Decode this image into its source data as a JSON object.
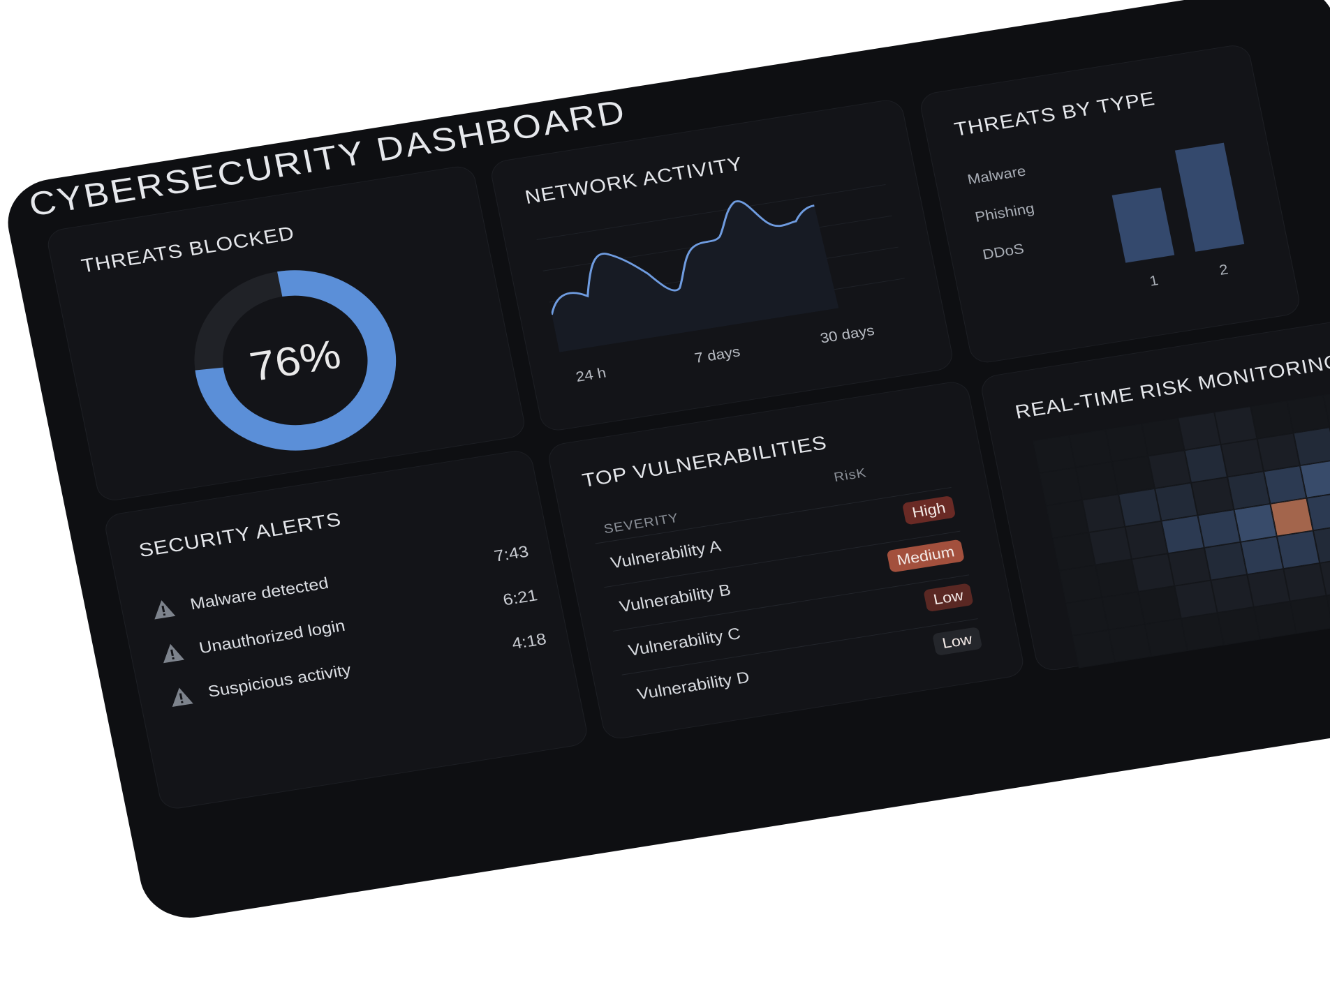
{
  "title": "CYBERSECURITY DASHBOARD",
  "threats_blocked": {
    "title": "THREATS BLOCKED",
    "value_label": "76%",
    "value": 76,
    "ring_color": "#5b8fd8",
    "track_color": "#202227"
  },
  "network": {
    "title": "NETWORK ACTIVITY",
    "x_labels": [
      "24 h",
      "7 days",
      "30 days"
    ],
    "line_color": "#6f9ce0"
  },
  "threats_by_type": {
    "title": "THREATS BY TYPE",
    "types": [
      "Malware",
      "Phishing",
      "DDoS"
    ],
    "bars": [
      {
        "label": "1",
        "value": 0.6
      },
      {
        "label": "2",
        "value": 0.9
      }
    ],
    "bar_color": "#34496d"
  },
  "alerts": {
    "title": "SECURITY ALERTS",
    "items": [
      {
        "text": "Malware detected",
        "time": "7:43"
      },
      {
        "text": "Unauthorized login",
        "time": "6:21"
      },
      {
        "text": "Suspicious activity",
        "time": "4:18"
      }
    ]
  },
  "vulnerabilities": {
    "title": "TOP VULNERABILITIES",
    "col_severity": "SEVERITY",
    "col_risk": "RisK",
    "rows": [
      {
        "name": "Vulnerability A",
        "risk": "High",
        "color": "#6a2a25"
      },
      {
        "name": "Vulnerability B",
        "risk": "Medium",
        "color": "#a3503d"
      },
      {
        "name": "Vulnerability C",
        "risk": "Low",
        "color": "#5a2823"
      },
      {
        "name": "Vulnerability D",
        "risk": "Low",
        "color": "#24262b"
      }
    ]
  },
  "risk": {
    "title": "REAL-TIME RISK MONITORING",
    "palette": [
      "#15171b",
      "#1b1e25",
      "#222a38",
      "#2c3a52",
      "#384b6a",
      "#a3654c",
      "#c98a63"
    ],
    "levels": [
      [
        0,
        0,
        0,
        0,
        1,
        1,
        0,
        0,
        0,
        0
      ],
      [
        0,
        0,
        0,
        1,
        2,
        1,
        1,
        2,
        1,
        0
      ],
      [
        0,
        1,
        2,
        2,
        1,
        2,
        3,
        4,
        3,
        2
      ],
      [
        0,
        1,
        1,
        3,
        3,
        4,
        5,
        3,
        6,
        2
      ],
      [
        0,
        0,
        1,
        1,
        2,
        3,
        3,
        2,
        1,
        1
      ],
      [
        0,
        0,
        0,
        1,
        1,
        1,
        1,
        1,
        0,
        0
      ],
      [
        0,
        0,
        0,
        0,
        0,
        0,
        0,
        0,
        0,
        0
      ]
    ]
  }
}
